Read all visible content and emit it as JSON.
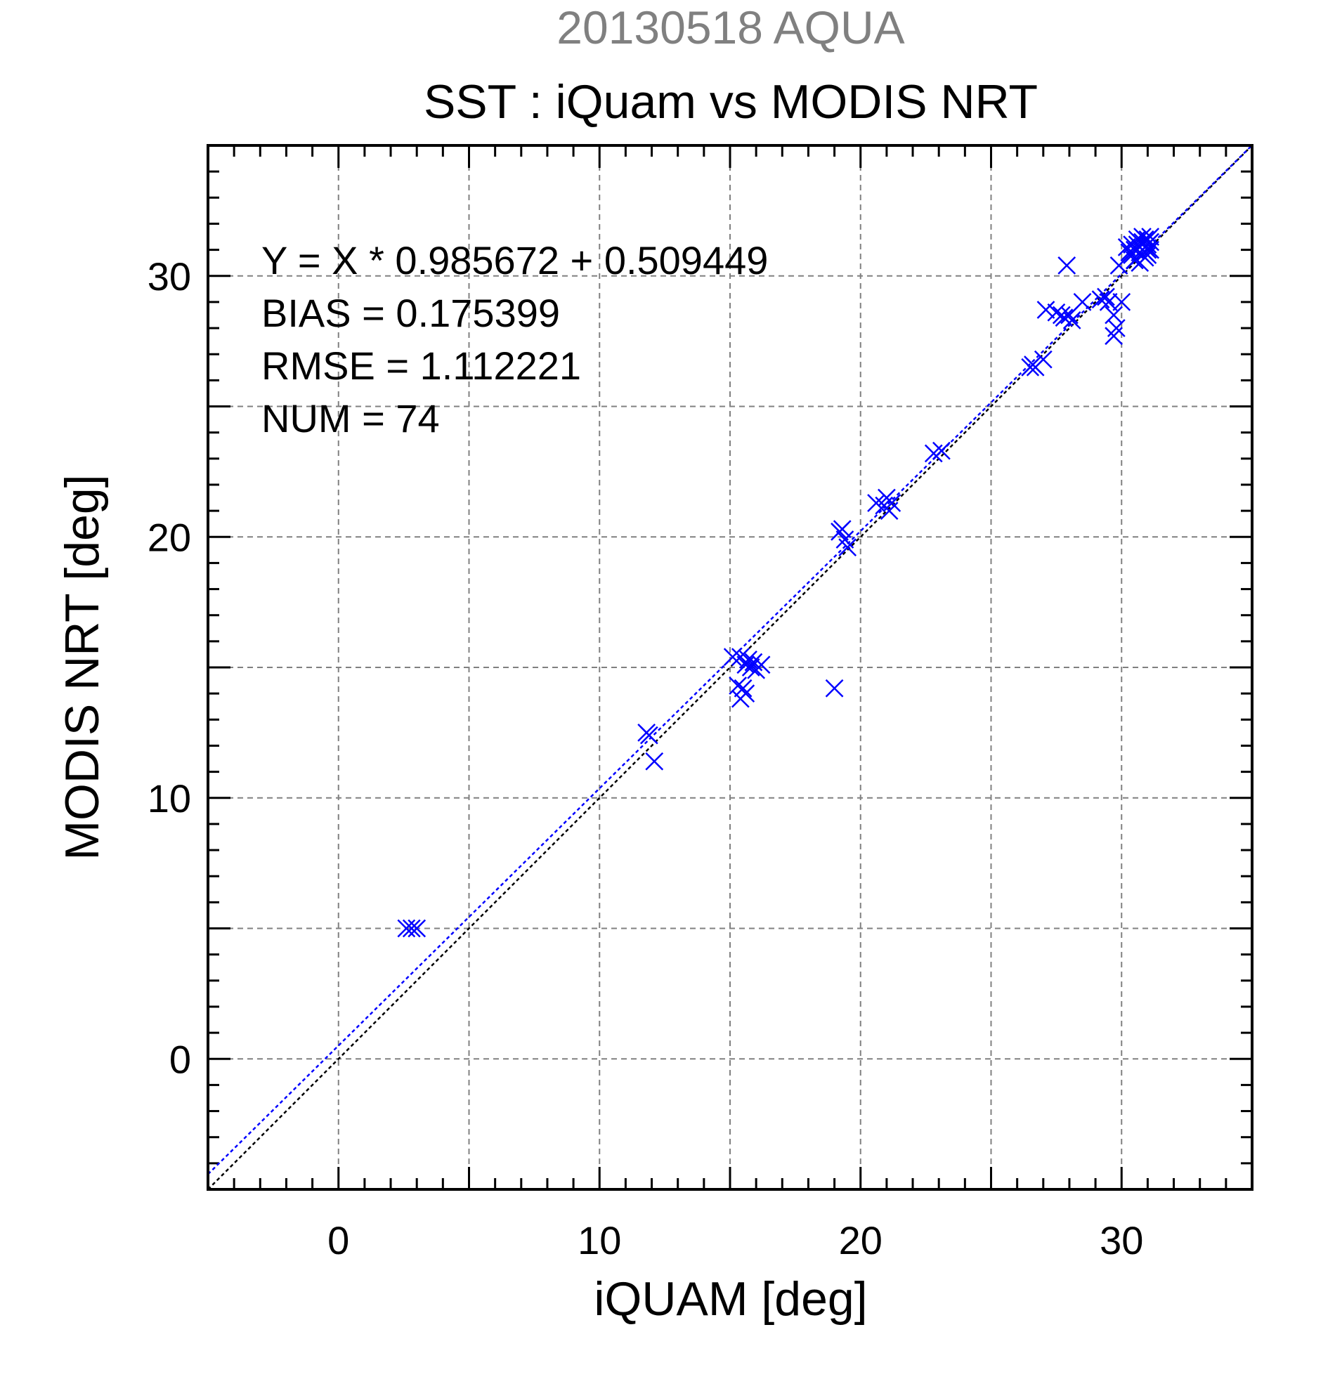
{
  "chart_data": {
    "type": "scatter",
    "supertitle": "20130518 AQUA",
    "title": "SST : iQuam vs MODIS NRT",
    "xlabel": "iQUAM [deg]",
    "ylabel": "MODIS NRT [deg]",
    "xlim": [
      -5,
      35
    ],
    "ylim": [
      -5,
      35
    ],
    "major_ticks": [
      0,
      10,
      20,
      30
    ],
    "tick_labels": [
      "0",
      "10",
      "20",
      "30"
    ],
    "grid_values": [
      0,
      5,
      10,
      15,
      20,
      25,
      30
    ],
    "grid": true,
    "stats": [
      "Y = X * 0.985672 + 0.509449",
      "BIAS = 0.175399",
      "RMSE = 1.112221",
      "NUM = 74"
    ],
    "fit_line": {
      "slope": 0.985672,
      "intercept": 0.509449,
      "color": "#0000ff"
    },
    "identity_line": {
      "slope": 1,
      "intercept": 0,
      "color": "#000000"
    },
    "marker_color": "#0000ff",
    "supertitle_color": "#808080",
    "points": [
      [
        2.6,
        5.0
      ],
      [
        2.8,
        5.0
      ],
      [
        3.0,
        5.0
      ],
      [
        11.8,
        12.5
      ],
      [
        11.9,
        12.4
      ],
      [
        12.1,
        11.4
      ],
      [
        15.1,
        15.4
      ],
      [
        15.4,
        15.4
      ],
      [
        15.6,
        15.1
      ],
      [
        15.7,
        15.3
      ],
      [
        15.8,
        15.0
      ],
      [
        15.9,
        15.2
      ],
      [
        16.0,
        14.9
      ],
      [
        16.2,
        15.1
      ],
      [
        15.3,
        14.3
      ],
      [
        15.5,
        14.2
      ],
      [
        15.4,
        13.8
      ],
      [
        15.6,
        14.0
      ],
      [
        19.0,
        14.2
      ],
      [
        19.2,
        20.2
      ],
      [
        19.3,
        20.3
      ],
      [
        19.4,
        19.9
      ],
      [
        19.5,
        19.6
      ],
      [
        20.6,
        21.3
      ],
      [
        20.9,
        21.2
      ],
      [
        21.0,
        21.5
      ],
      [
        21.2,
        21.3
      ],
      [
        21.1,
        21.0
      ],
      [
        22.8,
        23.2
      ],
      [
        23.1,
        23.3
      ],
      [
        26.5,
        26.5
      ],
      [
        26.6,
        26.6
      ],
      [
        26.7,
        26.5
      ],
      [
        27.0,
        26.8
      ],
      [
        27.1,
        28.7
      ],
      [
        27.5,
        28.6
      ],
      [
        27.7,
        28.5
      ],
      [
        27.8,
        28.4
      ],
      [
        28.0,
        28.5
      ],
      [
        28.1,
        28.3
      ],
      [
        27.9,
        30.4
      ],
      [
        28.5,
        29.0
      ],
      [
        29.2,
        29.1
      ],
      [
        29.4,
        29.2
      ],
      [
        29.5,
        29.0
      ],
      [
        29.7,
        28.5
      ],
      [
        29.8,
        28.0
      ],
      [
        29.7,
        27.7
      ],
      [
        30.0,
        29.0
      ],
      [
        29.9,
        30.4
      ],
      [
        30.2,
        31.1
      ],
      [
        30.4,
        30.8
      ],
      [
        30.5,
        31.0
      ],
      [
        30.6,
        31.2
      ],
      [
        30.7,
        30.9
      ],
      [
        30.8,
        31.3
      ],
      [
        30.7,
        30.5
      ],
      [
        30.9,
        31.1
      ],
      [
        31.0,
        31.4
      ],
      [
        31.1,
        31.0
      ],
      [
        30.9,
        30.7
      ],
      [
        30.8,
        31.5
      ],
      [
        31.0,
        31.2
      ],
      [
        31.1,
        31.3
      ],
      [
        30.6,
        31.4
      ],
      [
        30.5,
        30.6
      ],
      [
        30.9,
        30.9
      ],
      [
        31.0,
        30.8
      ],
      [
        31.1,
        31.5
      ],
      [
        30.3,
        30.9
      ],
      [
        30.7,
        31.1
      ],
      [
        30.9,
        31.4
      ],
      [
        31.0,
        31.0
      ],
      [
        30.4,
        31.2
      ]
    ]
  }
}
